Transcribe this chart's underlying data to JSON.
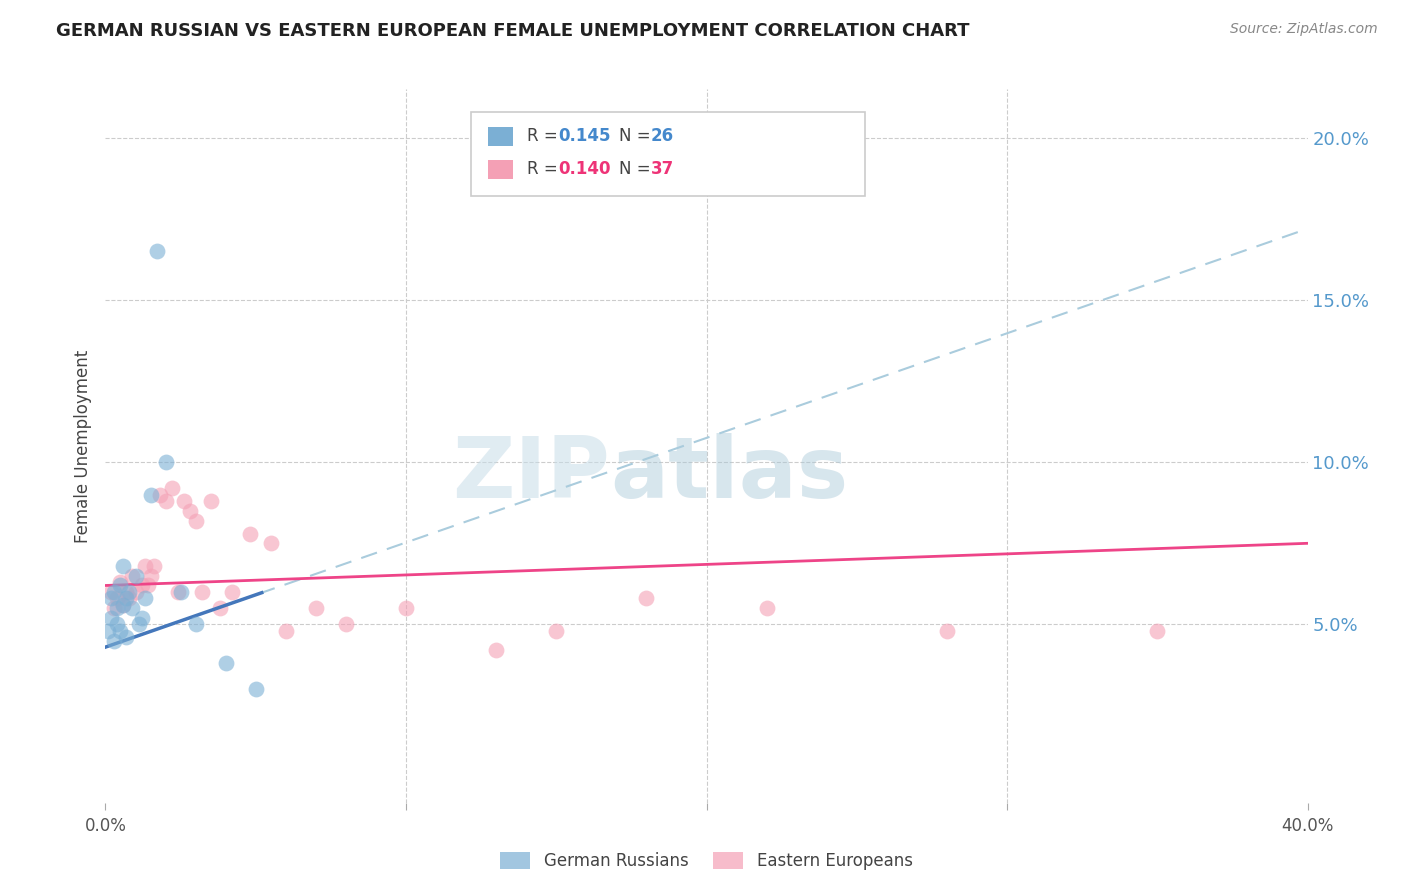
{
  "title": "GERMAN RUSSIAN VS EASTERN EUROPEAN FEMALE UNEMPLOYMENT CORRELATION CHART",
  "source": "Source: ZipAtlas.com",
  "ylabel": "Female Unemployment",
  "xlim": [
    0.0,
    0.4
  ],
  "ylim": [
    -0.005,
    0.215
  ],
  "ytick_labels_right": [
    "5.0%",
    "10.0%",
    "15.0%",
    "20.0%"
  ],
  "ytick_vals_right": [
    0.05,
    0.1,
    0.15,
    0.2
  ],
  "blue_color": "#7BAFD4",
  "pink_color": "#F4A0B5",
  "blue_line_color": "#4477BB",
  "pink_line_color": "#EE4488",
  "dashed_line_color": "#AACCDD",
  "blue_R": 0.145,
  "blue_N": 26,
  "pink_R": 0.14,
  "pink_N": 37,
  "watermark_zip": "ZIP",
  "watermark_atlas": "atlas",
  "blue_label": "German Russians",
  "pink_label": "Eastern Europeans",
  "german_russian_x": [
    0.001,
    0.002,
    0.002,
    0.003,
    0.003,
    0.004,
    0.004,
    0.005,
    0.005,
    0.006,
    0.006,
    0.007,
    0.007,
    0.008,
    0.009,
    0.01,
    0.011,
    0.012,
    0.013,
    0.015,
    0.017,
    0.02,
    0.025,
    0.03,
    0.04,
    0.05
  ],
  "german_russian_y": [
    0.048,
    0.052,
    0.058,
    0.045,
    0.06,
    0.05,
    0.055,
    0.062,
    0.048,
    0.068,
    0.056,
    0.058,
    0.046,
    0.06,
    0.055,
    0.065,
    0.05,
    0.052,
    0.058,
    0.09,
    0.165,
    0.1,
    0.06,
    0.05,
    0.038,
    0.03
  ],
  "eastern_european_x": [
    0.002,
    0.003,
    0.004,
    0.005,
    0.006,
    0.007,
    0.008,
    0.009,
    0.01,
    0.012,
    0.013,
    0.014,
    0.015,
    0.016,
    0.018,
    0.02,
    0.022,
    0.024,
    0.026,
    0.028,
    0.03,
    0.032,
    0.035,
    0.038,
    0.042,
    0.048,
    0.055,
    0.06,
    0.07,
    0.08,
    0.1,
    0.13,
    0.15,
    0.18,
    0.22,
    0.28,
    0.35
  ],
  "eastern_european_y": [
    0.06,
    0.055,
    0.058,
    0.063,
    0.056,
    0.06,
    0.058,
    0.065,
    0.06,
    0.062,
    0.068,
    0.062,
    0.065,
    0.068,
    0.09,
    0.088,
    0.092,
    0.06,
    0.088,
    0.085,
    0.082,
    0.06,
    0.088,
    0.055,
    0.06,
    0.078,
    0.075,
    0.048,
    0.055,
    0.05,
    0.055,
    0.042,
    0.048,
    0.058,
    0.055,
    0.048,
    0.048
  ]
}
